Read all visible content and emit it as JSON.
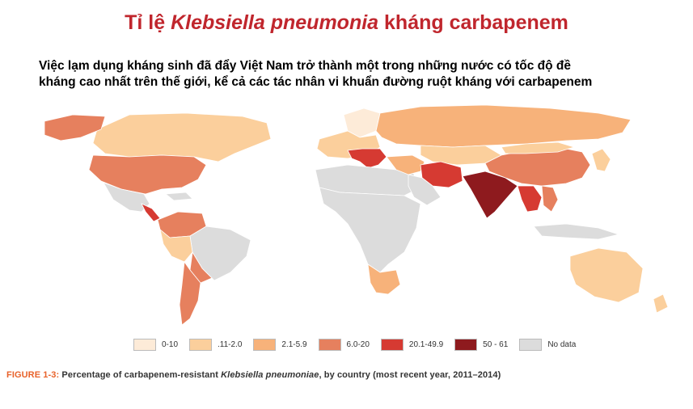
{
  "slide": {
    "title_prefix": "Tỉ lệ ",
    "title_italic": "Klebsiella pneumonia",
    "title_suffix": " kháng carbapenem",
    "subtitle_line1": "Việc lạm dụng kháng sinh đã đẩy Việt Nam trở thành một trong những nước có tốc độ đề",
    "subtitle_line2": "kháng cao nhất trên thế giới, kể cả các tác nhân vi khuẩn đường ruột kháng với carbapenem"
  },
  "legend": [
    {
      "label": "0-10",
      "color": "#fdebd8"
    },
    {
      "label": ".11-2.0",
      "color": "#fbcf9c"
    },
    {
      "label": "2.1-5.9",
      "color": "#f7b27a"
    },
    {
      "label": "6.0-20",
      "color": "#e6805e"
    },
    {
      "label": "20.1-49.9",
      "color": "#d63a32"
    },
    {
      "label": "50 - 61",
      "color": "#8e1a1e"
    },
    {
      "label": "No data",
      "color": "#dcdcdc"
    }
  ],
  "caption": {
    "figure_label": "FIGURE 1-3:",
    "text_before": " Percentage of carbapenem-resistant ",
    "italic": "Klebsiella pneumoniae",
    "text_after": ", by country (most recent year, 2011–2014)"
  },
  "regions": [
    {
      "name": "canada",
      "color": "#fbcf9c"
    },
    {
      "name": "greenland",
      "color": "#e6805e"
    },
    {
      "name": "usa",
      "color": "#e6805e"
    },
    {
      "name": "mexico",
      "color": "#dcdcdc"
    },
    {
      "name": "central-america",
      "color": "#d63a32"
    },
    {
      "name": "caribbean",
      "color": "#dcdcdc"
    },
    {
      "name": "south-america-north",
      "color": "#e6805e"
    },
    {
      "name": "brazil",
      "color": "#dcdcdc"
    },
    {
      "name": "peru-bolivia",
      "color": "#fbcf9c"
    },
    {
      "name": "paraguay",
      "color": "#e6805e"
    },
    {
      "name": "argentina-chile",
      "color": "#e6805e"
    },
    {
      "name": "europe-north",
      "color": "#fdebd8"
    },
    {
      "name": "europe-west",
      "color": "#fbcf9c"
    },
    {
      "name": "italy-greece",
      "color": "#d63a32"
    },
    {
      "name": "russia",
      "color": "#f7b27a"
    },
    {
      "name": "kazakhstan",
      "color": "#fbcf9c"
    },
    {
      "name": "africa",
      "color": "#dcdcdc"
    },
    {
      "name": "north-africa",
      "color": "#dcdcdc"
    },
    {
      "name": "south-africa",
      "color": "#f7b27a"
    },
    {
      "name": "middle-east",
      "color": "#f7b27a"
    },
    {
      "name": "iran",
      "color": "#d63a32"
    },
    {
      "name": "arabia",
      "color": "#dcdcdc"
    },
    {
      "name": "india",
      "color": "#8e1a1e"
    },
    {
      "name": "china",
      "color": "#e6805e"
    },
    {
      "name": "mongolia",
      "color": "#fbcf9c"
    },
    {
      "name": "southeast-asia",
      "color": "#d63a32"
    },
    {
      "name": "vietnam",
      "color": "#e6805e"
    },
    {
      "name": "japan-korea",
      "color": "#fbcf9c"
    },
    {
      "name": "indonesia",
      "color": "#dcdcdc"
    },
    {
      "name": "australia",
      "color": "#fbcf9c"
    },
    {
      "name": "new-zealand",
      "color": "#fbcf9c"
    }
  ]
}
